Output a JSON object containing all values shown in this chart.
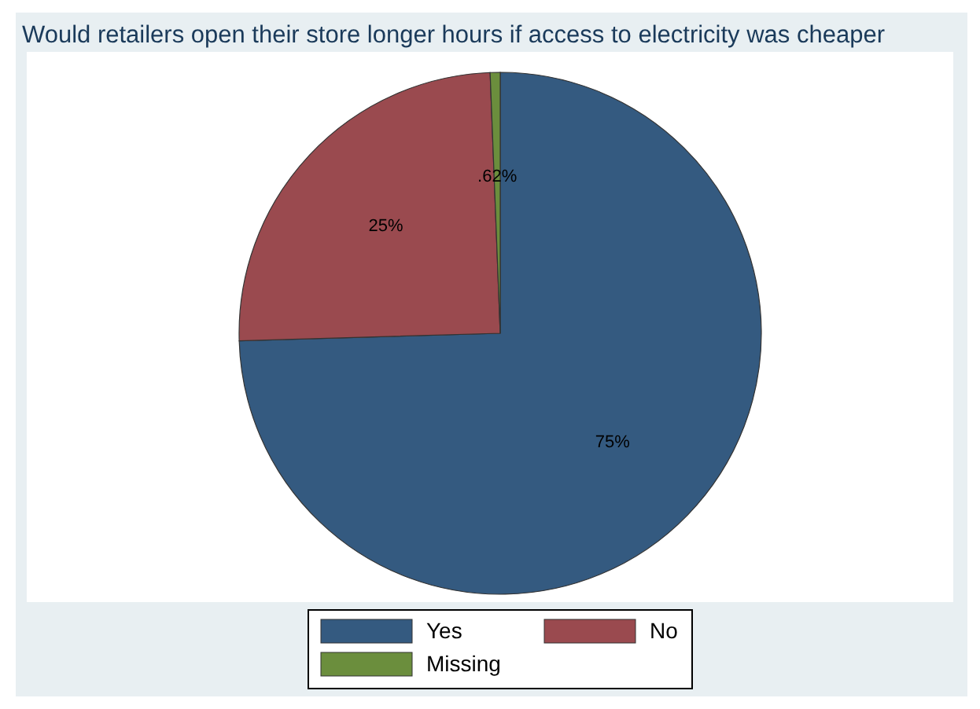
{
  "chart_data": {
    "type": "pie",
    "title": "Would retailers open their store longer hours if access to electricity was cheaper",
    "categories": [
      "Yes",
      "No",
      "Missing"
    ],
    "values": [
      75,
      25,
      0.62
    ],
    "colors": [
      "#345a80",
      "#9a4a4f",
      "#6b8e3d"
    ],
    "value_labels": [
      "75%",
      "25%",
      ".62%"
    ],
    "legend": "bottom"
  }
}
